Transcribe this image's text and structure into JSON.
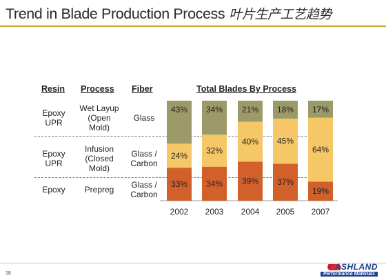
{
  "page": {
    "title": "Trend in Blade Production Process",
    "title_zh": "叶片生产工艺趋势",
    "page_number": "18",
    "accent_color": "#c9a227"
  },
  "table": {
    "headers": {
      "resin": "Resin",
      "process": "Process",
      "fiber": "Fiber"
    },
    "rows": [
      {
        "resin": "Epoxy\nUPR",
        "process": "Wet Layup\n(Open\nMold)",
        "fiber": "Glass"
      },
      {
        "resin": "Epoxy\nUPR",
        "process": "Infusion\n(Closed\nMold)",
        "fiber": "Glass /\nCarbon"
      },
      {
        "resin": "Epoxy",
        "process": "Prepreg",
        "fiber": "Glass /\nCarbon"
      }
    ]
  },
  "logo": {
    "name": "ASHLAND",
    "tagline": "Performance Materials",
    "brand_color": "#1b3f8f"
  },
  "chart_data": {
    "type": "bar",
    "stacked": true,
    "normalized_100": true,
    "title": "Total Blades By Process",
    "categories": [
      "2002",
      "2003",
      "2004",
      "2005",
      "2007"
    ],
    "series": [
      {
        "values": [
          33,
          34,
          39,
          37,
          19
        ],
        "labels": [
          "33%",
          "34%",
          "39%",
          "37%",
          "19%"
        ],
        "color": "#d2602b"
      },
      {
        "values": [
          24,
          32,
          40,
          45,
          64
        ],
        "labels": [
          "24%",
          "32%",
          "40%",
          "45%",
          "64%"
        ],
        "color": "#f6c766"
      },
      {
        "values": [
          43,
          34,
          21,
          18,
          17
        ],
        "labels": [
          "43%",
          "34%",
          "21%",
          "18%",
          "17%"
        ],
        "color": "#9c9a68"
      }
    ],
    "ylim": [
      0,
      100
    ]
  }
}
